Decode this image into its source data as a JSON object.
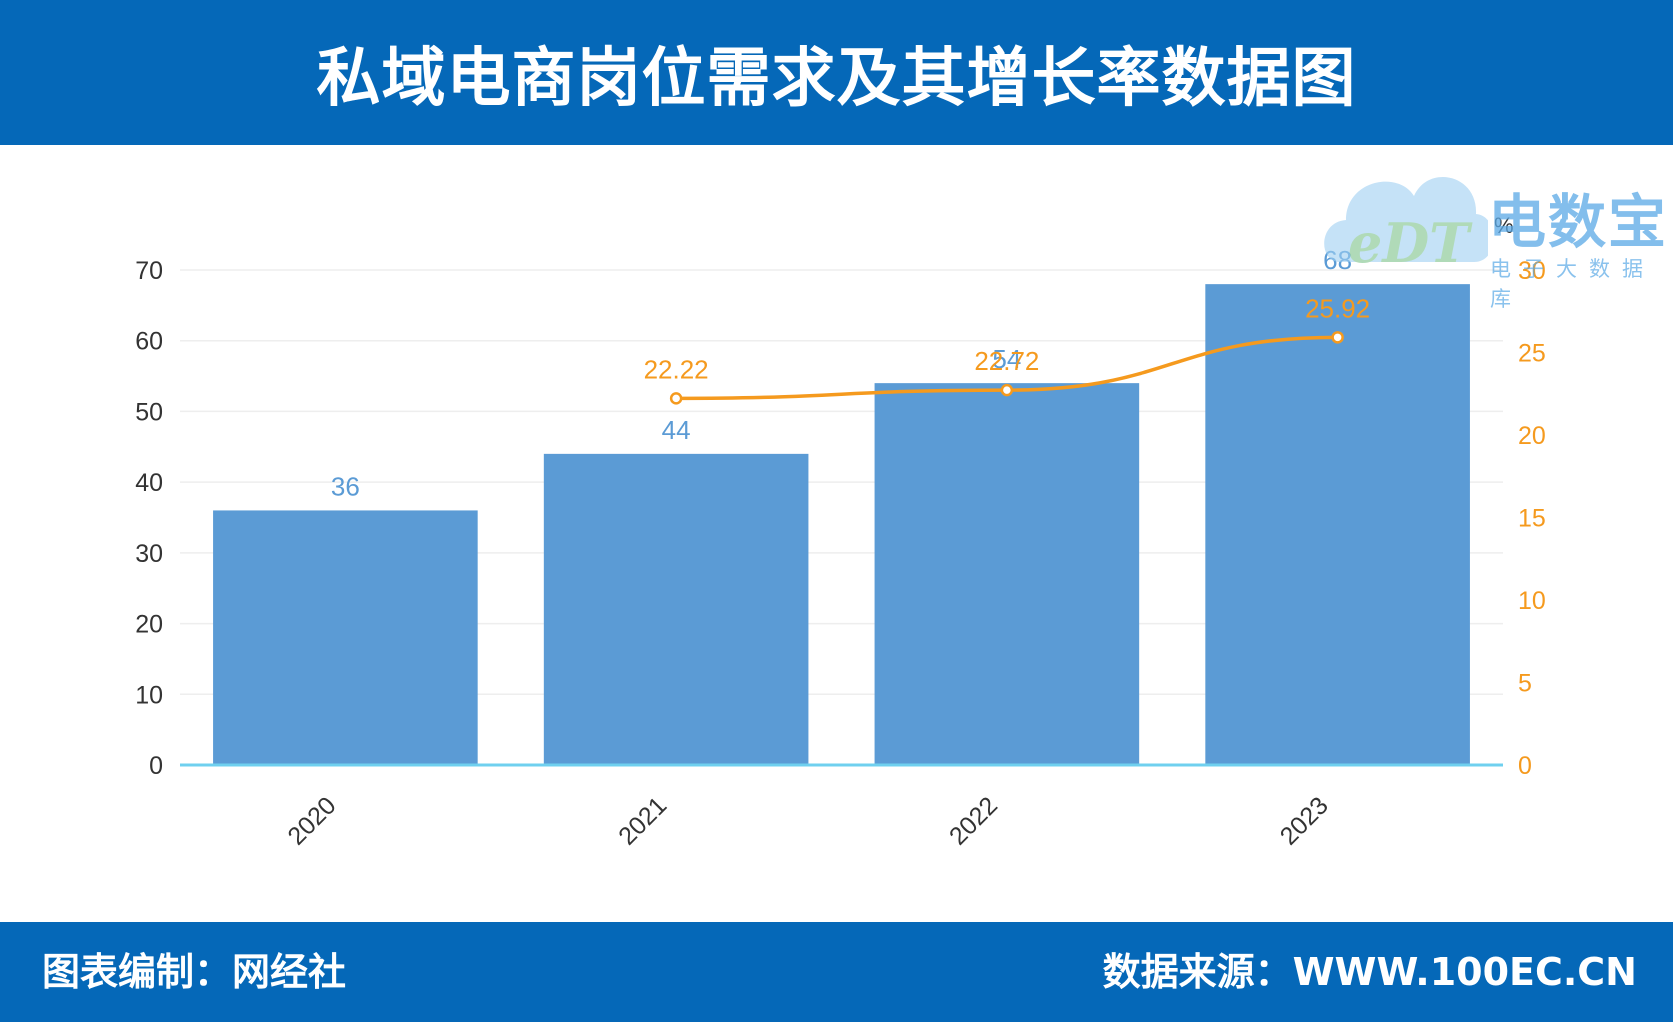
{
  "header": {
    "title": "私域电商岗位需求及其增长率数据图"
  },
  "footer": {
    "left_label": "图表编制：网经社",
    "right_label": "数据来源：WWW.100EC.CN"
  },
  "watermark": {
    "brand": "电数宝",
    "sub": "电子大数据库",
    "logo_text": "eDT"
  },
  "colors": {
    "header_bg": "#0568b8",
    "bar": "#5b9bd5",
    "bar_label": "#5b9bd5",
    "line": "#f59a1e",
    "axis_line": "#6fd0ef",
    "grid": "#eeeeee",
    "left_tick": "#333333",
    "right_tick": "#f59a1e"
  },
  "chart_data": {
    "type": "bar+line",
    "categories": [
      "2020",
      "2021",
      "2022",
      "2023"
    ],
    "series": [
      {
        "type": "bar",
        "values": [
          36,
          44,
          54,
          68
        ],
        "axis": "left"
      },
      {
        "type": "line",
        "values": [
          null,
          22.22,
          22.72,
          25.92
        ],
        "axis": "right"
      }
    ],
    "y_left": {
      "range": [
        0,
        70
      ],
      "ticks": [
        0,
        10,
        20,
        30,
        40,
        50,
        60,
        70
      ]
    },
    "y_right": {
      "range": [
        0,
        30
      ],
      "ticks": [
        0,
        5,
        10,
        15,
        20,
        25,
        30
      ],
      "unit": "%"
    },
    "grid": true,
    "legend": "none"
  }
}
